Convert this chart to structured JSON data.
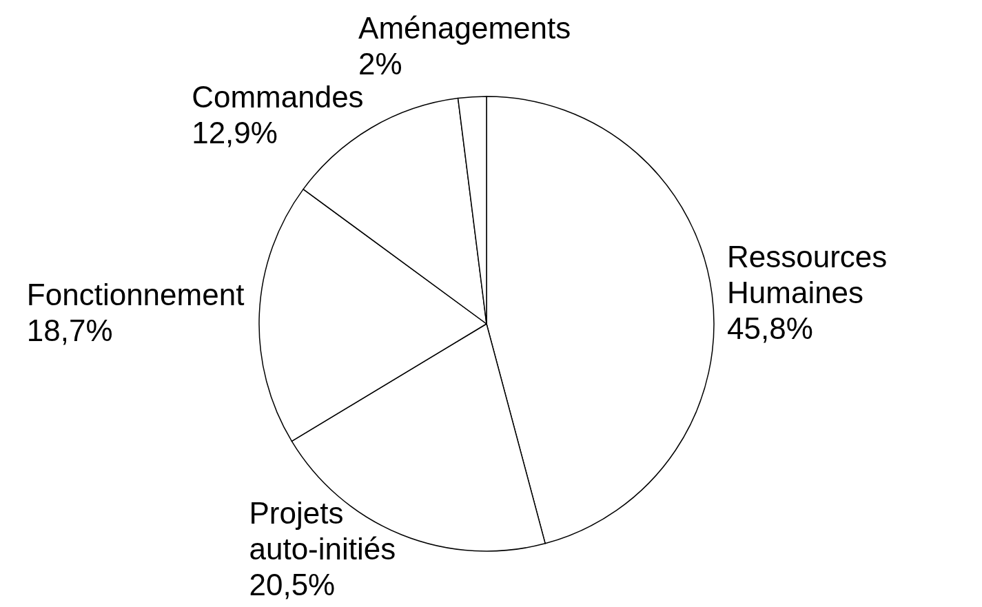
{
  "chart_data": {
    "type": "pie",
    "categories": [
      "Ressources\nHumaines",
      "Projets\nauto-initiés",
      "Fonctionnement",
      "Commandes",
      "Aménagements"
    ],
    "values": [
      45.8,
      20.5,
      18.7,
      12.9,
      2
    ],
    "value_labels": [
      "45,8%",
      "20,5%",
      "18,7%",
      "12,9%",
      "2%"
    ],
    "colors": [
      "#ffffff",
      "#ffffff",
      "#ffffff",
      "#ffffff",
      "#ffffff"
    ],
    "legend": false
  }
}
